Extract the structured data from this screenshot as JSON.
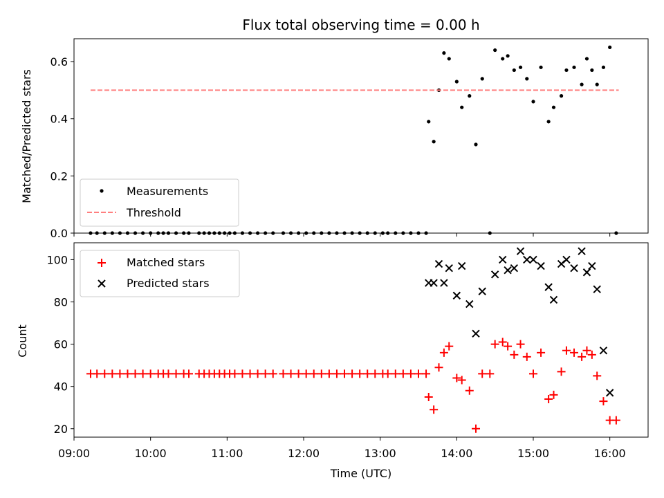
{
  "chart_data": [
    {
      "type": "scatter",
      "title": "Flux total observing time = 0.00 h",
      "xlabel": "",
      "ylabel": "Matched/Predicted stars",
      "xlim": [
        "09:00",
        "16:30"
      ],
      "ylim": [
        0,
        0.68
      ],
      "y_ticks": [
        "0.0",
        "0.2",
        "0.4",
        "0.6"
      ],
      "legend": {
        "position": "lower-left",
        "entries": [
          "Measurements",
          "Threshold"
        ]
      },
      "series": [
        {
          "name": "Measurements",
          "marker": "dot",
          "color": "#000000",
          "points": [
            [
              "09:13",
              0
            ],
            [
              "09:18",
              0
            ],
            [
              "09:24",
              0
            ],
            [
              "09:30",
              0
            ],
            [
              "09:36",
              0
            ],
            [
              "09:42",
              0
            ],
            [
              "09:48",
              0
            ],
            [
              "09:54",
              0
            ],
            [
              "10:00",
              0
            ],
            [
              "10:06",
              0
            ],
            [
              "10:10",
              0
            ],
            [
              "10:14",
              0
            ],
            [
              "10:20",
              0
            ],
            [
              "10:26",
              0
            ],
            [
              "10:30",
              0
            ],
            [
              "10:38",
              0
            ],
            [
              "10:42",
              0
            ],
            [
              "10:46",
              0
            ],
            [
              "10:50",
              0
            ],
            [
              "10:54",
              0
            ],
            [
              "10:58",
              0
            ],
            [
              "11:02",
              0
            ],
            [
              "11:06",
              0
            ],
            [
              "11:12",
              0
            ],
            [
              "11:18",
              0
            ],
            [
              "11:24",
              0
            ],
            [
              "11:30",
              0
            ],
            [
              "11:36",
              0
            ],
            [
              "11:44",
              0
            ],
            [
              "11:50",
              0
            ],
            [
              "11:56",
              0
            ],
            [
              "12:02",
              0
            ],
            [
              "12:08",
              0
            ],
            [
              "12:14",
              0
            ],
            [
              "12:20",
              0
            ],
            [
              "12:26",
              0
            ],
            [
              "12:32",
              0
            ],
            [
              "12:38",
              0
            ],
            [
              "12:44",
              0
            ],
            [
              "12:50",
              0
            ],
            [
              "12:56",
              0
            ],
            [
              "13:02",
              0
            ],
            [
              "13:06",
              0
            ],
            [
              "13:12",
              0
            ],
            [
              "13:18",
              0
            ],
            [
              "13:24",
              0
            ],
            [
              "13:30",
              0
            ],
            [
              "13:36",
              0
            ],
            [
              "13:38",
              0.39
            ],
            [
              "13:42",
              0.32
            ],
            [
              "13:46",
              0.5
            ],
            [
              "13:50",
              0.63
            ],
            [
              "13:54",
              0.61
            ],
            [
              "14:00",
              0.53
            ],
            [
              "14:04",
              0.44
            ],
            [
              "14:10",
              0.48
            ],
            [
              "14:15",
              0.31
            ],
            [
              "14:20",
              0.54
            ],
            [
              "14:26",
              0
            ],
            [
              "14:30",
              0.64
            ],
            [
              "14:36",
              0.61
            ],
            [
              "14:40",
              0.62
            ],
            [
              "14:45",
              0.57
            ],
            [
              "14:50",
              0.58
            ],
            [
              "14:55",
              0.54
            ],
            [
              "15:00",
              0.46
            ],
            [
              "15:06",
              0.58
            ],
            [
              "15:12",
              0.39
            ],
            [
              "15:16",
              0.44
            ],
            [
              "15:22",
              0.48
            ],
            [
              "15:26",
              0.57
            ],
            [
              "15:32",
              0.58
            ],
            [
              "15:38",
              0.52
            ],
            [
              "15:42",
              0.61
            ],
            [
              "15:46",
              0.57
            ],
            [
              "15:50",
              0.52
            ],
            [
              "15:55",
              0.58
            ],
            [
              "16:00",
              0.65
            ],
            [
              "16:05",
              0
            ]
          ]
        },
        {
          "name": "Threshold",
          "marker": "dashed-line",
          "color": "#ff7f7f",
          "points": [
            [
              "09:13",
              0.5
            ],
            [
              "16:07",
              0.5
            ]
          ]
        }
      ]
    },
    {
      "type": "scatter",
      "title": "",
      "xlabel": "Time (UTC)",
      "ylabel": "Count",
      "xlim": [
        "09:00",
        "16:30"
      ],
      "ylim": [
        16,
        108
      ],
      "x_ticks": [
        "09:00",
        "10:00",
        "11:00",
        "12:00",
        "13:00",
        "14:00",
        "15:00",
        "16:00"
      ],
      "y_ticks": [
        "20",
        "40",
        "60",
        "80",
        "100"
      ],
      "legend": {
        "position": "upper-left",
        "entries": [
          "Matched stars",
          "Predicted stars"
        ]
      },
      "series": [
        {
          "name": "Matched stars",
          "marker": "plus",
          "color": "#ff0000",
          "points": [
            [
              "09:13",
              46
            ],
            [
              "09:18",
              46
            ],
            [
              "09:24",
              46
            ],
            [
              "09:30",
              46
            ],
            [
              "09:36",
              46
            ],
            [
              "09:42",
              46
            ],
            [
              "09:48",
              46
            ],
            [
              "09:54",
              46
            ],
            [
              "10:00",
              46
            ],
            [
              "10:06",
              46
            ],
            [
              "10:10",
              46
            ],
            [
              "10:14",
              46
            ],
            [
              "10:20",
              46
            ],
            [
              "10:26",
              46
            ],
            [
              "10:30",
              46
            ],
            [
              "10:38",
              46
            ],
            [
              "10:42",
              46
            ],
            [
              "10:46",
              46
            ],
            [
              "10:50",
              46
            ],
            [
              "10:54",
              46
            ],
            [
              "10:58",
              46
            ],
            [
              "11:02",
              46
            ],
            [
              "11:06",
              46
            ],
            [
              "11:12",
              46
            ],
            [
              "11:18",
              46
            ],
            [
              "11:24",
              46
            ],
            [
              "11:30",
              46
            ],
            [
              "11:36",
              46
            ],
            [
              "11:44",
              46
            ],
            [
              "11:50",
              46
            ],
            [
              "11:56",
              46
            ],
            [
              "12:02",
              46
            ],
            [
              "12:08",
              46
            ],
            [
              "12:14",
              46
            ],
            [
              "12:20",
              46
            ],
            [
              "12:26",
              46
            ],
            [
              "12:32",
              46
            ],
            [
              "12:38",
              46
            ],
            [
              "12:44",
              46
            ],
            [
              "12:50",
              46
            ],
            [
              "12:56",
              46
            ],
            [
              "13:02",
              46
            ],
            [
              "13:06",
              46
            ],
            [
              "13:12",
              46
            ],
            [
              "13:18",
              46
            ],
            [
              "13:24",
              46
            ],
            [
              "13:30",
              46
            ],
            [
              "13:36",
              46
            ],
            [
              "13:38",
              35
            ],
            [
              "13:42",
              29
            ],
            [
              "13:46",
              49
            ],
            [
              "13:50",
              56
            ],
            [
              "13:54",
              59
            ],
            [
              "14:00",
              44
            ],
            [
              "14:04",
              43
            ],
            [
              "14:10",
              38
            ],
            [
              "14:15",
              20
            ],
            [
              "14:20",
              46
            ],
            [
              "14:26",
              46
            ],
            [
              "14:30",
              60
            ],
            [
              "14:36",
              61
            ],
            [
              "14:40",
              59
            ],
            [
              "14:45",
              55
            ],
            [
              "14:50",
              60
            ],
            [
              "14:55",
              54
            ],
            [
              "15:00",
              46
            ],
            [
              "15:06",
              56
            ],
            [
              "15:12",
              34
            ],
            [
              "15:16",
              36
            ],
            [
              "15:22",
              47
            ],
            [
              "15:26",
              57
            ],
            [
              "15:32",
              56
            ],
            [
              "15:38",
              54
            ],
            [
              "15:42",
              57
            ],
            [
              "15:46",
              55
            ],
            [
              "15:50",
              45
            ],
            [
              "15:55",
              33
            ],
            [
              "16:00",
              24
            ],
            [
              "16:05",
              24
            ]
          ]
        },
        {
          "name": "Predicted stars",
          "marker": "x",
          "color": "#000000",
          "points": [
            [
              "13:38",
              89
            ],
            [
              "13:42",
              89
            ],
            [
              "13:46",
              98
            ],
            [
              "13:50",
              89
            ],
            [
              "13:54",
              96
            ],
            [
              "14:00",
              83
            ],
            [
              "14:04",
              97
            ],
            [
              "14:10",
              79
            ],
            [
              "14:15",
              65
            ],
            [
              "14:20",
              85
            ],
            [
              "14:30",
              93
            ],
            [
              "14:36",
              100
            ],
            [
              "14:40",
              95
            ],
            [
              "14:45",
              96
            ],
            [
              "14:50",
              104
            ],
            [
              "14:55",
              100
            ],
            [
              "15:00",
              100
            ],
            [
              "15:06",
              97
            ],
            [
              "15:12",
              87
            ],
            [
              "15:16",
              81
            ],
            [
              "15:22",
              98
            ],
            [
              "15:26",
              100
            ],
            [
              "15:32",
              96
            ],
            [
              "15:38",
              104
            ],
            [
              "15:42",
              94
            ],
            [
              "15:46",
              97
            ],
            [
              "15:50",
              86
            ],
            [
              "15:55",
              57
            ],
            [
              "16:00",
              37
            ]
          ]
        }
      ]
    }
  ]
}
